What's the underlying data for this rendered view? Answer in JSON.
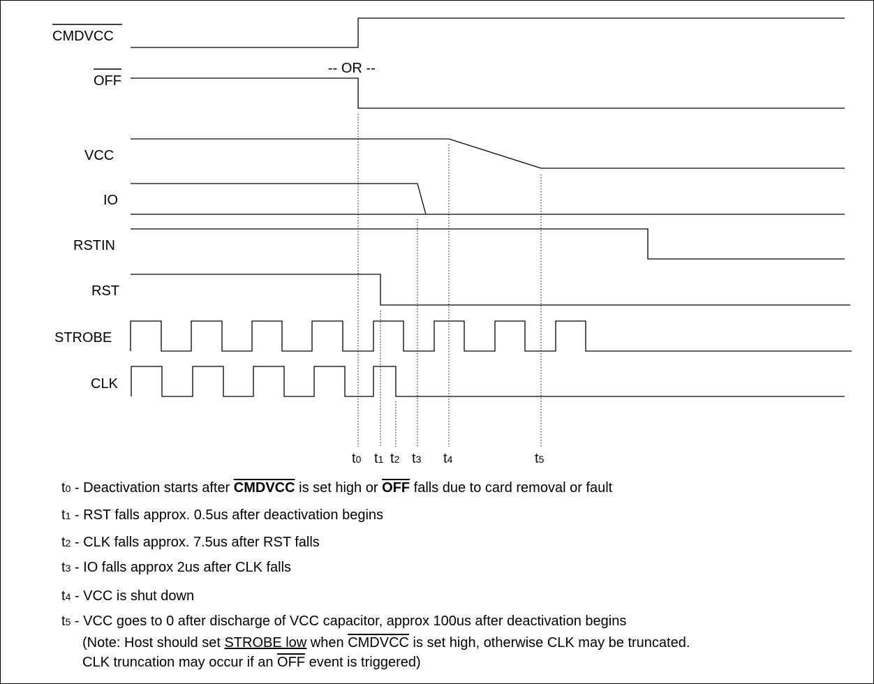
{
  "signals": {
    "cmdvcc": "CMDVCC",
    "off": "OFF",
    "vcc": "VCC",
    "io": "IO",
    "rstin": "RSTIN",
    "rst": "RST",
    "strobe": "STROBE",
    "clk": "CLK"
  },
  "or_text": "-- OR --",
  "ticks": [
    {
      "t": "t",
      "n": "0"
    },
    {
      "t": "t",
      "n": "1"
    },
    {
      "t": "t",
      "n": "2"
    },
    {
      "t": "t",
      "n": "3"
    },
    {
      "t": "t",
      "n": "4"
    },
    {
      "t": "t",
      "n": "5"
    }
  ],
  "notes": {
    "t0": {
      "sub": "0",
      "a": " - Deactivation starts after ",
      "cmdvcc": "CMDVCC",
      "b": " is set high or ",
      "off": "OFF",
      "c": " falls due to card removal or fault"
    },
    "t1": {
      "sub": "1",
      "text": " - RST falls approx. 0.5us after deactivation begins"
    },
    "t2": {
      "sub": "2",
      "text": " - CLK falls approx. 7.5us after RST falls"
    },
    "t3": {
      "sub": "3",
      "text": " - IO falls approx 2us after CLK falls"
    },
    "t4": {
      "sub": "4",
      "text": " - VCC is shut down"
    },
    "t5": {
      "sub": "5",
      "text": " - VCC goes to 0 after discharge of VCC capacitor, approx 100us after deactivation begins"
    },
    "note1": {
      "a": "(Note: Host should set ",
      "strobe_low": "STROBE low",
      "b": " when ",
      "cmdvcc": "CMDVCC",
      "c": " is set high, otherwise CLK  may be truncated."
    },
    "note2": {
      "a": "CLK truncation may occur if an ",
      "off": "OFF",
      "b": "  event is triggered)"
    }
  }
}
